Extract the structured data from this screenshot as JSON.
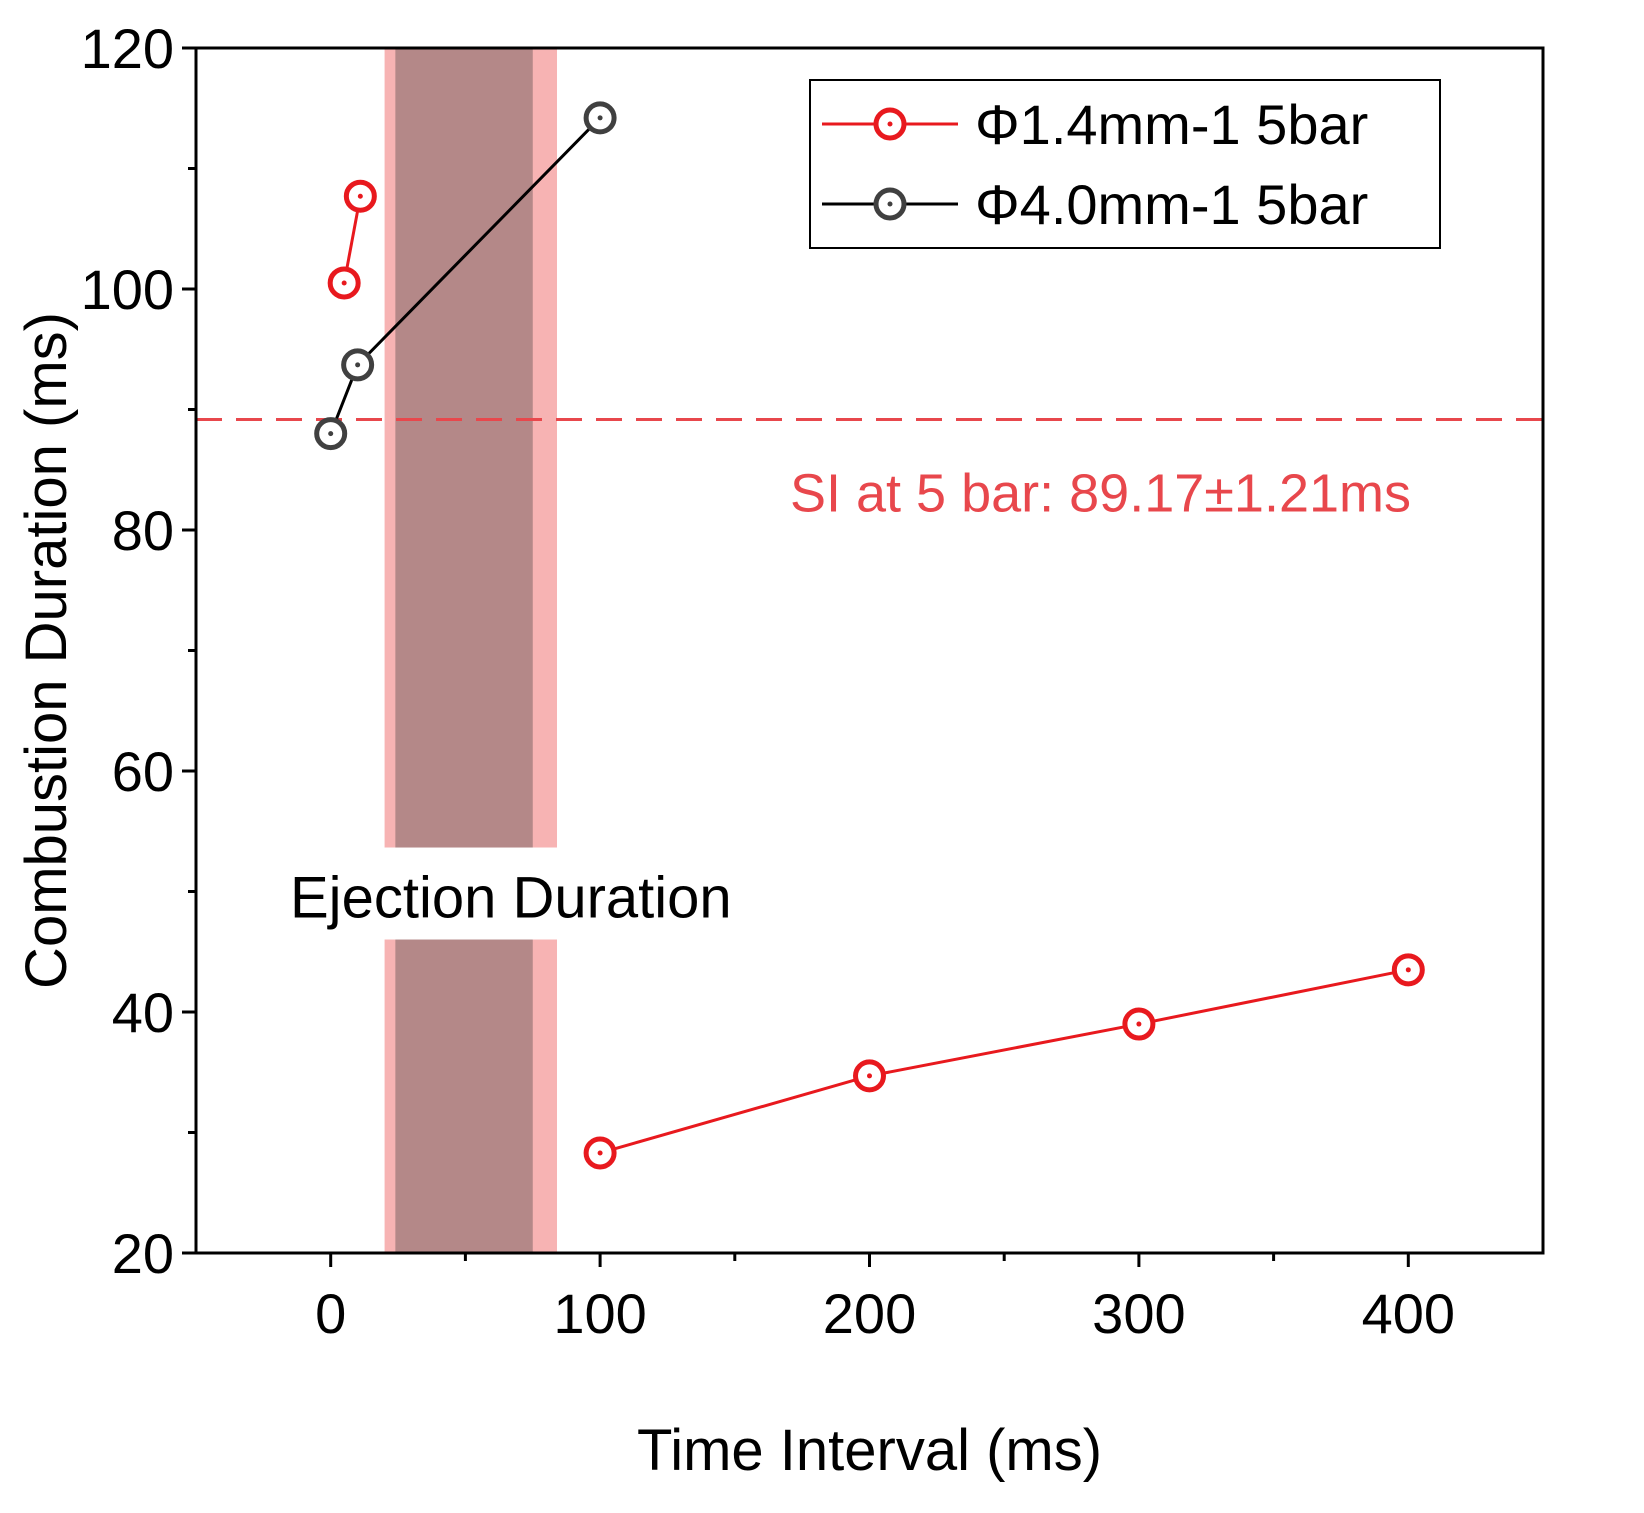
{
  "chart_data": {
    "type": "line",
    "title": "",
    "xlabel": "Time Interval (ms)",
    "ylabel": "Combustion Duration (ms)",
    "xlim": [
      -50,
      450
    ],
    "ylim": [
      20,
      120
    ],
    "xticks": [
      0,
      100,
      200,
      300,
      400
    ],
    "xtick_labels": [
      "0",
      "100",
      "200",
      "300",
      "400"
    ],
    "yticks": [
      20,
      40,
      60,
      80,
      100,
      120
    ],
    "ytick_labels": [
      "20",
      "40",
      "60",
      "80",
      "100",
      "120"
    ],
    "grid": false,
    "legend_position": "top-right",
    "series": [
      {
        "name": "Φ1.4mm-1 5bar",
        "color": "#e8191e",
        "segments": [
          [
            {
              "x": 5,
              "y": 100.5
            },
            {
              "x": 11,
              "y": 107.7
            }
          ],
          [
            {
              "x": 100,
              "y": 28.3
            },
            {
              "x": 200,
              "y": 34.7
            },
            {
              "x": 300,
              "y": 39.0
            },
            {
              "x": 400,
              "y": 43.5
            }
          ]
        ]
      },
      {
        "name": "Φ4.0mm-1 5bar",
        "color": "#404040",
        "line_color": "#000000",
        "segments": [
          [
            {
              "x": 0,
              "y": 88.0
            },
            {
              "x": 10,
              "y": 93.7
            },
            {
              "x": 100,
              "y": 114.2
            }
          ]
        ]
      }
    ],
    "reference_line": {
      "y": 89.17,
      "color": "#e8474c",
      "style": "dashed",
      "label": "SI at 5 bar:  89.17±1.21ms"
    },
    "shaded_regions": [
      {
        "x_start": 20,
        "x_end": 84,
        "color": "#f7b3b3"
      },
      {
        "x_start": 24,
        "x_end": 75,
        "color": "#b48888"
      }
    ],
    "region_label": "Ejection Duration",
    "region_label_y": 49.5
  }
}
